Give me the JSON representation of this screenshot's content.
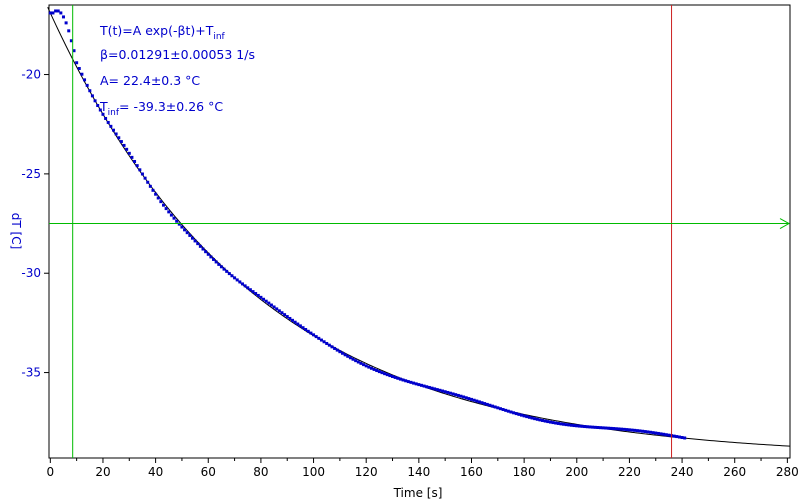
{
  "chart_data": {
    "type": "scatter",
    "xlabel": "Time [s]",
    "ylabel": "dT [C]",
    "xlim": [
      -0.5,
      281
    ],
    "ylim": [
      -39.3,
      -16.5
    ],
    "x_ticks": [
      0,
      20,
      40,
      60,
      80,
      100,
      120,
      140,
      160,
      180,
      200,
      220,
      240,
      260,
      280
    ],
    "y_ticks": [
      -20,
      -25,
      -30,
      -35
    ],
    "grid": false,
    "annotations": {
      "formula_main": "T(t)=A exp(-βt)+T",
      "formula_sub": "inf",
      "beta": "β=0.01291±0.00053 1/s",
      "amp": "A= 22.4±0.3 °C",
      "tinf_main": "T",
      "tinf_sub": "inf",
      "tinf_value": "= -39.3±0.26 °C"
    },
    "fit": {
      "A": 22.4,
      "beta": 0.01291,
      "T_inf": -39.3,
      "x_range": [
        -1,
        281
      ]
    },
    "measured": {
      "x_range": [
        0,
        241
      ],
      "step": 1,
      "fit_from": 10,
      "initial_points": [
        [
          0,
          -16.9
        ],
        [
          1,
          -16.9
        ],
        [
          2,
          -16.8
        ],
        [
          3,
          -16.8
        ],
        [
          4,
          -16.9
        ],
        [
          5,
          -17.1
        ],
        [
          6,
          -17.4
        ],
        [
          7,
          -17.8
        ],
        [
          8,
          -18.3
        ],
        [
          9,
          -18.8
        ]
      ]
    },
    "markers": {
      "vertical_green_x": 8.5,
      "vertical_red_x": 236,
      "horizontal_green_y": -27.5
    },
    "colors": {
      "data": "#0000cc",
      "fit": "#000000",
      "green": "#00bb00",
      "red": "#cc2020",
      "axis_text": "#0000cc"
    }
  }
}
